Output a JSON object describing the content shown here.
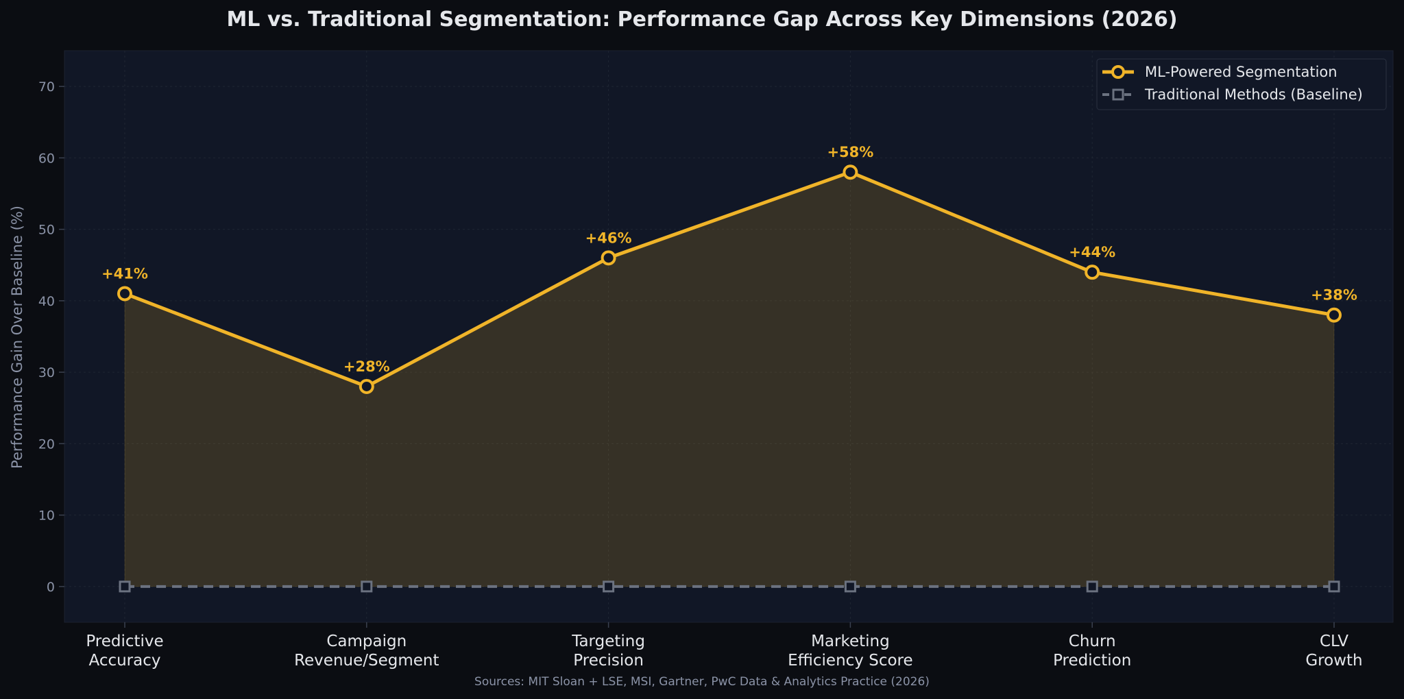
{
  "chart_data": {
    "type": "line",
    "title": "ML vs. Traditional Segmentation: Performance Gap Across Key Dimensions (2026)",
    "ylabel": "Performance Gain Over Baseline (%)",
    "xlabel": "",
    "categories": [
      [
        "Predictive",
        "Accuracy"
      ],
      [
        "Campaign",
        "Revenue/Segment"
      ],
      [
        "Targeting",
        "Precision"
      ],
      [
        "Marketing",
        "Efficiency Score"
      ],
      [
        "Churn",
        "Prediction"
      ],
      [
        "CLV",
        "Growth"
      ]
    ],
    "series": [
      {
        "name": "ML-Powered Segmentation",
        "values": [
          41,
          28,
          46,
          58,
          44,
          38
        ],
        "data_labels": [
          "+41%",
          "+28%",
          "+46%",
          "+58%",
          "+44%",
          "+38%"
        ],
        "color": "#f0b429",
        "marker": "circle",
        "line_style": "solid",
        "area_fill": true
      },
      {
        "name": "Traditional Methods (Baseline)",
        "values": [
          0,
          0,
          0,
          0,
          0,
          0
        ],
        "color": "#6b7280",
        "marker": "square",
        "line_style": "dashed"
      }
    ],
    "ylim": [
      -5,
      75
    ],
    "yticks": [
      "0",
      "10",
      "20",
      "30",
      "40",
      "50",
      "60",
      "70"
    ],
    "grid": true,
    "legend_position": "top-right",
    "source_note": "Sources: MIT Sloan + LSE, MSI, Gartner, PwC Data & Analytics Practice (2026)"
  },
  "colors": {
    "page_background": "#0b0d12",
    "plot_background": "#111726",
    "title": "#e5e7eb",
    "axis_text": "#8b93a7",
    "category_text": "#e5e7eb",
    "grid": "#1f2633"
  }
}
